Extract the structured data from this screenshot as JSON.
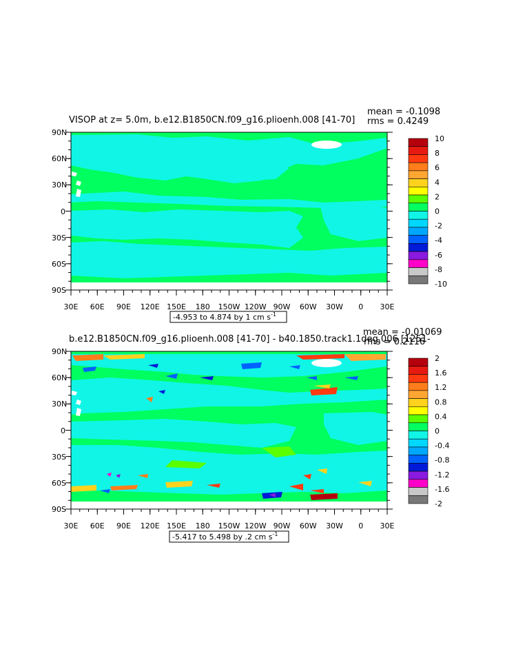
{
  "colors": {
    "ocean_base": "#00ff5f",
    "cyan": "#11f5e6",
    "land": "#00ff5f",
    "missing": "#ffffff"
  },
  "panels": [
    {
      "title": "VISOP at z=    5.0m, b.e12.B1850CN.f09_g16.plioenh.008 [41-70]",
      "mean_text": "mean = -0.1098",
      "rms_text": "rms = 0.4249",
      "range_text": "-4.953 to 4.874 by 1 cm s",
      "range_sup": "-1",
      "x_ticks": [
        "30E",
        "60E",
        "90E",
        "120E",
        "150E",
        "180",
        "150W",
        "120W",
        "90W",
        "60W",
        "30W",
        "0",
        "30E"
      ],
      "y_ticks": [
        "90N",
        "60N",
        "30N",
        "0",
        "30S",
        "60S",
        "90S"
      ],
      "colorbar_labels": [
        "10",
        "8",
        "6",
        "4",
        "2",
        "0",
        "-2",
        "-4",
        "-6",
        "-8",
        "-10"
      ],
      "colorbar_colors": [
        "#b5000d",
        "#e61a10",
        "#ff3a10",
        "#ff7d1a",
        "#ffa633",
        "#ffd21e",
        "#ffff00",
        "#5aff00",
        "#00ff5f",
        "#11f5e6",
        "#00d7ff",
        "#00a7ff",
        "#0062ff",
        "#001ad7",
        "#8a1adf",
        "#ff00c8",
        "#c8c8c8",
        "#787878"
      ]
    },
    {
      "title": "b.e12.B1850CN.f09_g16.plioenh.008 [41-70] - b40.1850.track1.1deg.006 [1251-",
      "mean_text": "mean = -0.01069",
      "rms_text": "rms = 0.2116",
      "range_text": "-5.417 to 5.498 by .2 cm s",
      "range_sup": "-1",
      "x_ticks": [
        "30E",
        "60E",
        "90E",
        "120E",
        "150E",
        "180",
        "150W",
        "120W",
        "90W",
        "60W",
        "30W",
        "0",
        "30E"
      ],
      "y_ticks": [
        "90N",
        "60N",
        "30N",
        "0",
        "30S",
        "60S",
        "90S"
      ],
      "colorbar_labels": [
        "2",
        "1.6",
        "1.2",
        "0.8",
        "0.4",
        "0",
        "-0.4",
        "-0.8",
        "-1.2",
        "-1.6",
        "-2"
      ],
      "colorbar_colors": [
        "#b5000d",
        "#e61a10",
        "#ff3a10",
        "#ff7d1a",
        "#ffa633",
        "#ffd21e",
        "#ffff00",
        "#5aff00",
        "#00ff5f",
        "#11f5e6",
        "#00d7ff",
        "#00a7ff",
        "#0062ff",
        "#001ad7",
        "#8a1adf",
        "#ff00c8",
        "#c8c8c8",
        "#787878"
      ]
    }
  ]
}
